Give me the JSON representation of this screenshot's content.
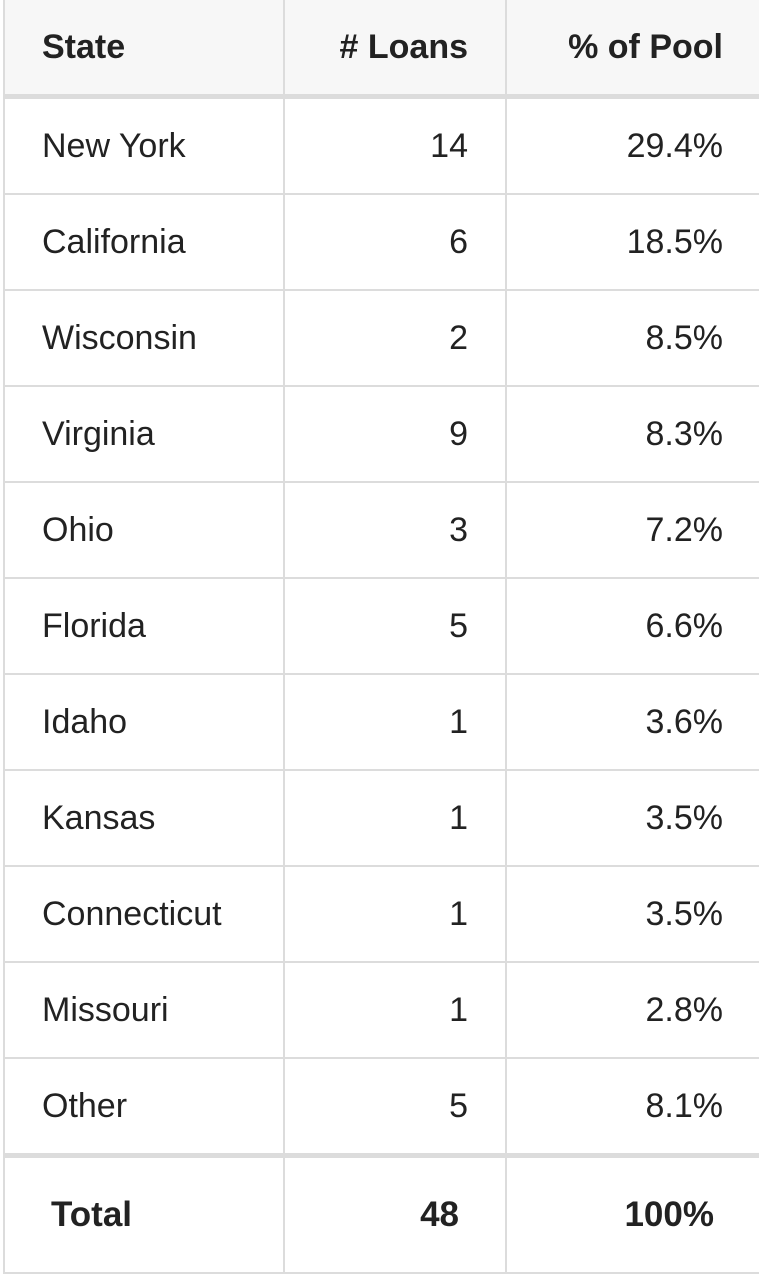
{
  "table": {
    "header": [
      "State",
      "# Loans",
      "% of Pool"
    ],
    "rows": [
      [
        "New York",
        14,
        "29.4%"
      ],
      [
        "California",
        6,
        "18.5%"
      ],
      [
        "Wisconsin",
        2,
        "8.5%"
      ],
      [
        "Virginia",
        9,
        "8.3%"
      ],
      [
        "Ohio",
        3,
        "7.2%"
      ],
      [
        "Florida",
        5,
        "6.6%"
      ],
      [
        "Idaho",
        1,
        "3.6%"
      ],
      [
        "Kansas",
        1,
        "3.5%"
      ],
      [
        "Connecticut",
        1,
        "3.5%"
      ],
      [
        "Missouri",
        1,
        "2.8%"
      ],
      [
        "Other",
        5,
        "8.1%"
      ]
    ],
    "total": [
      "Total",
      48,
      "100%"
    ]
  }
}
